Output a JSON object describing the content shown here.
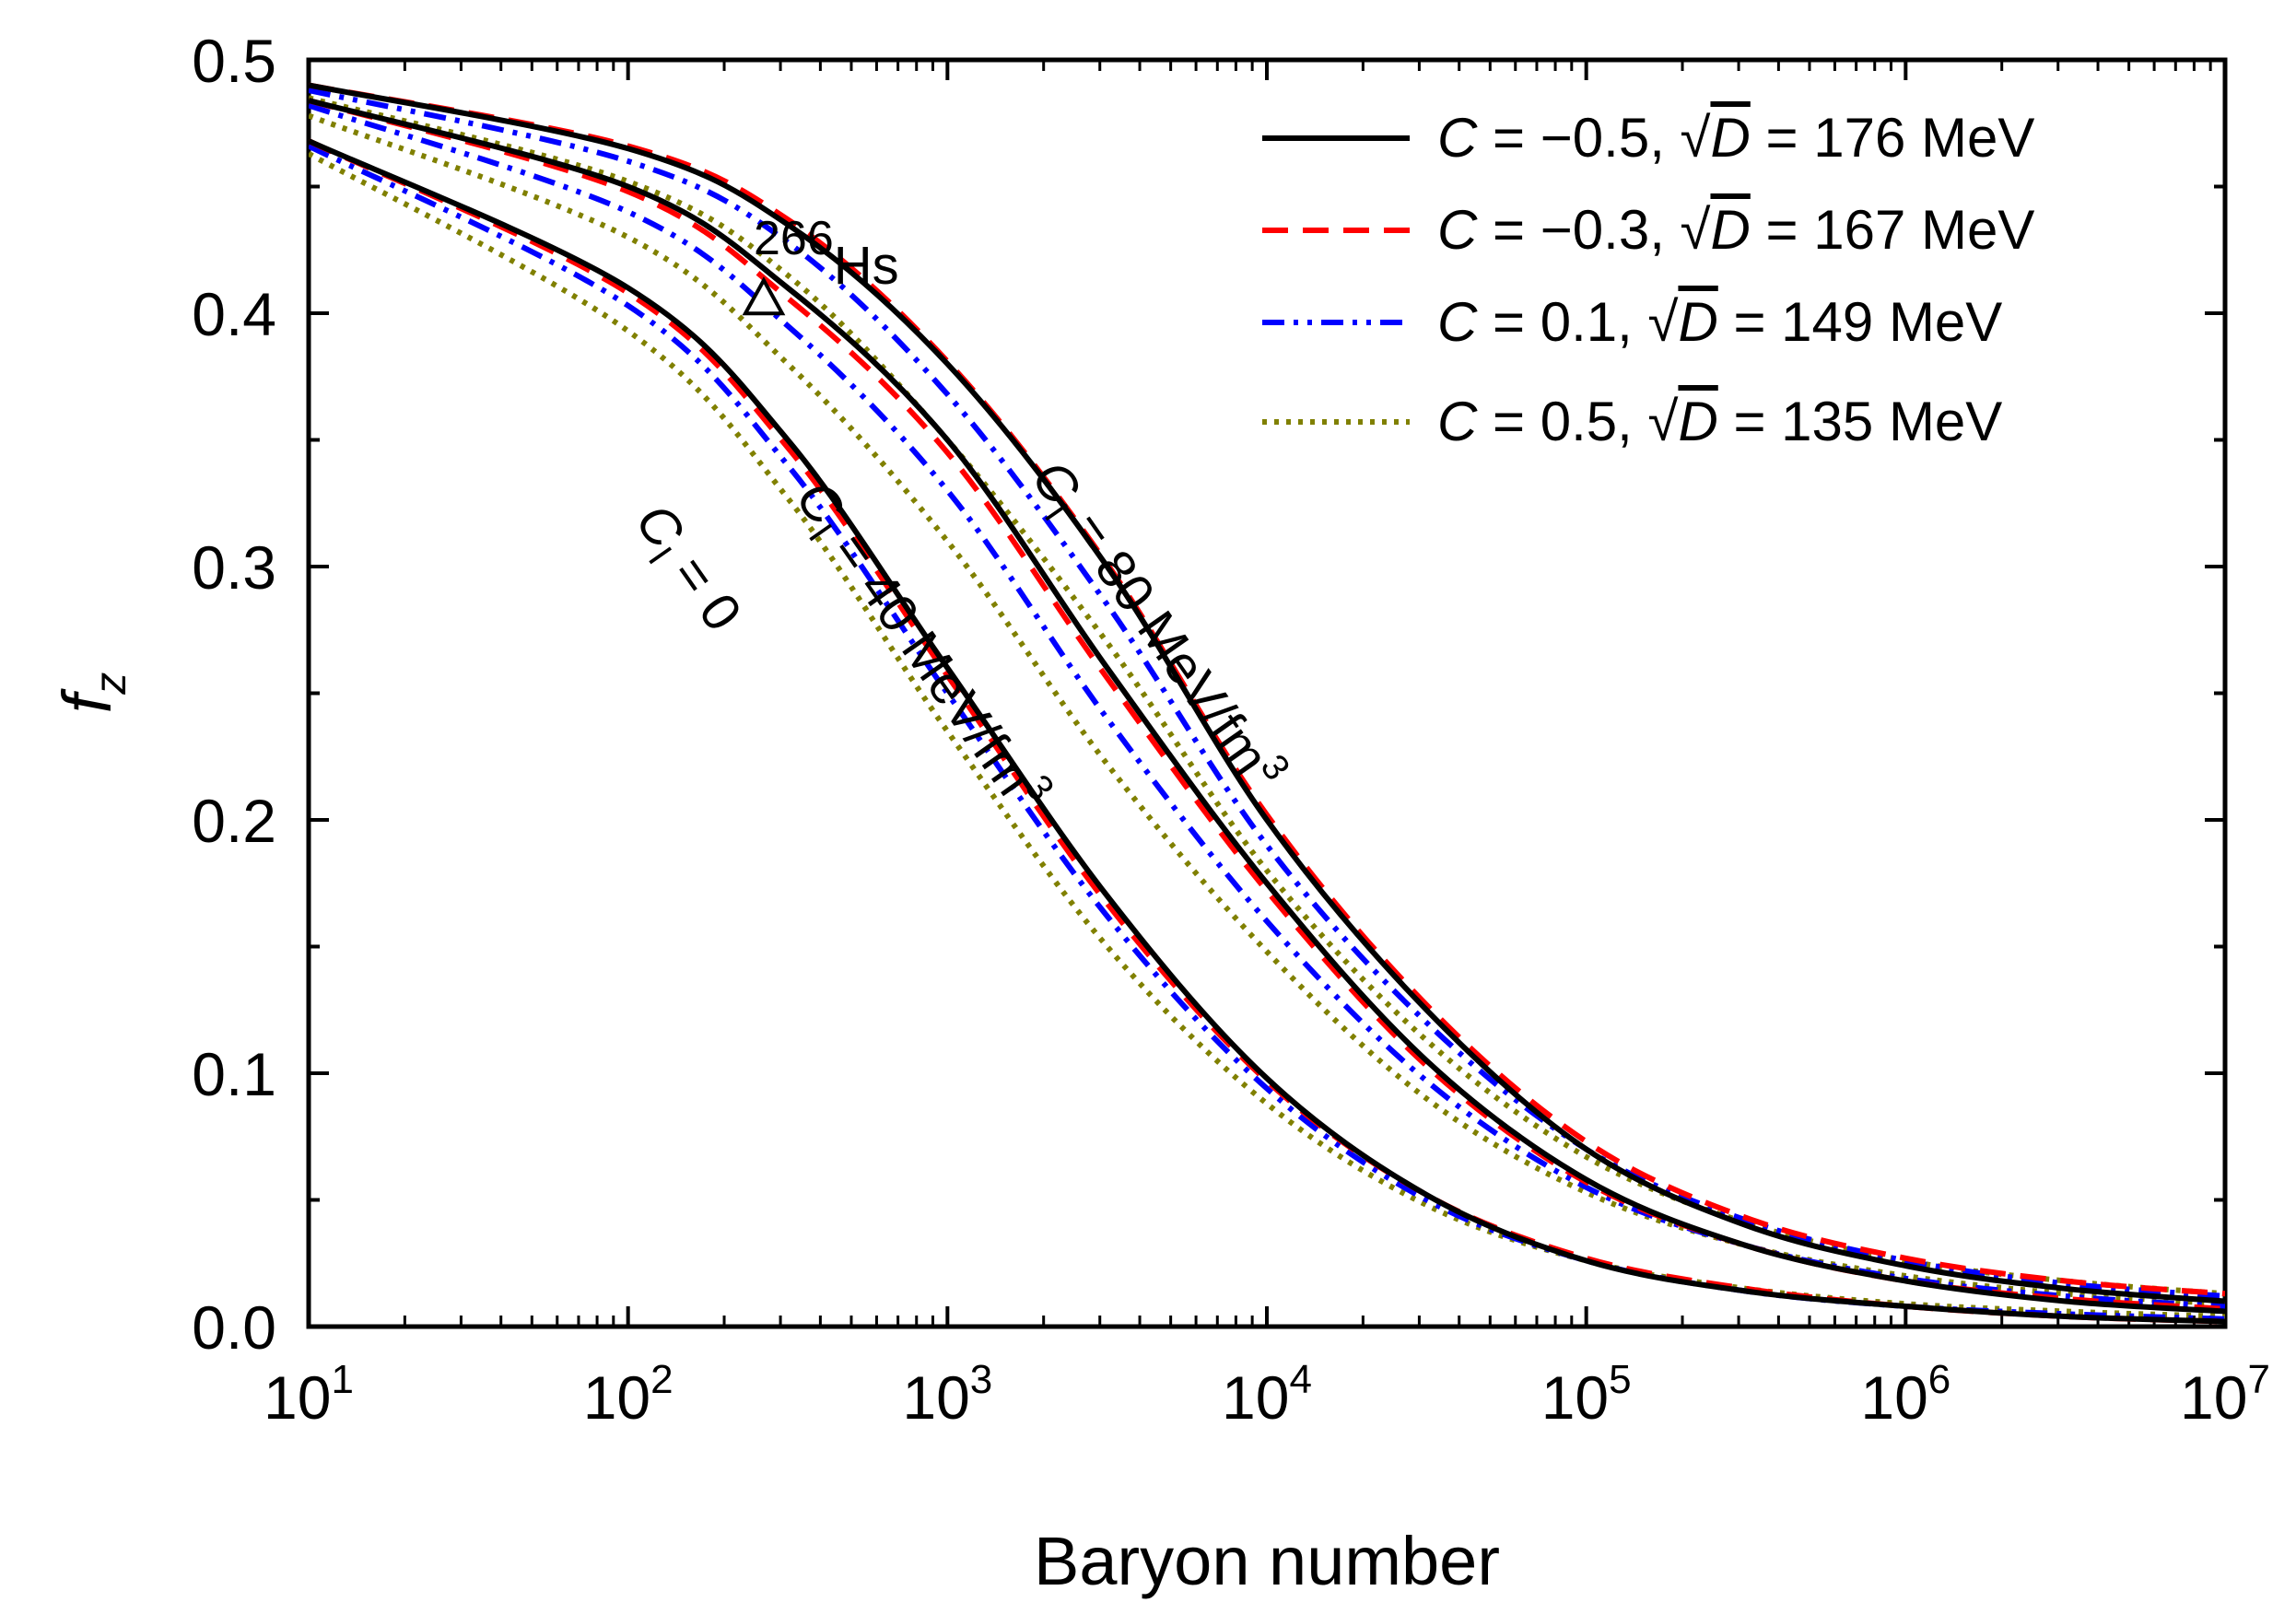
{
  "chart_data": {
    "type": "line",
    "x_scale": "log10",
    "xlabel": "Baryon number",
    "ylabel": {
      "main": "f",
      "sub": "z"
    },
    "xlim_exponents": [
      1,
      7
    ],
    "xticks": [
      {
        "base": "10",
        "exp": "1"
      },
      {
        "base": "10",
        "exp": "2"
      },
      {
        "base": "10",
        "exp": "3"
      },
      {
        "base": "10",
        "exp": "4"
      },
      {
        "base": "10",
        "exp": "5"
      },
      {
        "base": "10",
        "exp": "6"
      },
      {
        "base": "10",
        "exp": "7"
      }
    ],
    "ylim": [
      0,
      0.5
    ],
    "yticks": [
      "0.0",
      "0.1",
      "0.2",
      "0.3",
      "0.4",
      "0.5"
    ],
    "legend": {
      "placement": "top-right",
      "entries": [
        {
          "C": "−0.5",
          "D": "176 MeV"
        },
        {
          "C": "−0.3",
          "D": "167 MeV"
        },
        {
          "C": "0.1",
          "D": "149 MeV"
        },
        {
          "C": "0.5",
          "D": "135 MeV"
        }
      ]
    },
    "series": [
      {
        "name": "C = −0.5, √D = 176 MeV",
        "style": "solid",
        "color": "#000000",
        "groups": [
          {
            "Cl": "0",
            "x_exp": [
              1,
              2,
              2.5,
              3,
              3.5,
              4,
              4.5,
              5,
              5.5,
              6,
              6.5,
              7
            ],
            "y": [
              0.468,
              0.41,
              0.35,
              0.26,
              0.17,
              0.098,
              0.052,
              0.026,
              0.014,
              0.008,
              0.004,
              0.002
            ]
          },
          {
            "Cl": "40",
            "x_exp": [
              1,
              2,
              2.5,
              3,
              3.5,
              4,
              4.5,
              5,
              5.5,
              6,
              6.5,
              7
            ],
            "y": [
              0.484,
              0.45,
              0.41,
              0.35,
              0.26,
              0.175,
              0.105,
              0.058,
              0.032,
              0.018,
              0.01,
              0.006
            ]
          },
          {
            "Cl": "80",
            "x_exp": [
              1,
              2,
              2.5,
              3,
              3.5,
              4,
              4.5,
              5,
              5.5,
              6,
              6.5,
              7
            ],
            "y": [
              0.49,
              0.465,
              0.435,
              0.38,
              0.3,
              0.2,
              0.125,
              0.07,
              0.04,
              0.024,
              0.015,
              0.01
            ]
          }
        ]
      },
      {
        "name": "C = −0.3, √D = 167 MeV",
        "style": "dash",
        "color": "#ff0000",
        "groups": [
          {
            "Cl": "0",
            "x_exp": [
              1,
              2,
              2.5,
              3,
              3.5,
              4,
              4.5,
              5,
              5.5,
              6,
              6.5,
              7
            ],
            "y": [
              0.468,
              0.408,
              0.347,
              0.257,
              0.167,
              0.097,
              0.052,
              0.027,
              0.015,
              0.008,
              0.004,
              0.002
            ]
          },
          {
            "Cl": "40",
            "x_exp": [
              1,
              2,
              2.5,
              3,
              3.5,
              4,
              4.5,
              5,
              5.5,
              6,
              6.5,
              7
            ],
            "y": [
              0.484,
              0.448,
              0.406,
              0.345,
              0.256,
              0.172,
              0.103,
              0.057,
              0.032,
              0.018,
              0.011,
              0.007
            ]
          },
          {
            "Cl": "80",
            "x_exp": [
              1,
              2,
              2.5,
              3,
              3.5,
              4,
              4.5,
              5,
              5.5,
              6,
              6.5,
              7
            ],
            "y": [
              0.49,
              0.466,
              0.437,
              0.381,
              0.301,
              0.202,
              0.127,
              0.073,
              0.043,
              0.027,
              0.018,
              0.013
            ]
          }
        ]
      },
      {
        "name": "C = 0.1, √D = 149 MeV",
        "style": "dashdotdot",
        "color": "#0000ff",
        "groups": [
          {
            "Cl": "0",
            "x_exp": [
              1,
              2,
              2.5,
              3,
              3.5,
              4,
              4.5,
              5,
              5.5,
              6,
              6.5,
              7
            ],
            "y": [
              0.466,
              0.403,
              0.34,
              0.25,
              0.162,
              0.094,
              0.05,
              0.026,
              0.014,
              0.008,
              0.005,
              0.003
            ]
          },
          {
            "Cl": "40",
            "x_exp": [
              1,
              2,
              2.5,
              3,
              3.5,
              4,
              4.5,
              5,
              5.5,
              6,
              6.5,
              7
            ],
            "y": [
              0.482,
              0.44,
              0.395,
              0.33,
              0.24,
              0.16,
              0.097,
              0.055,
              0.032,
              0.019,
              0.012,
              0.008
            ]
          },
          {
            "Cl": "80",
            "x_exp": [
              1,
              2,
              2.5,
              3,
              3.5,
              4,
              4.5,
              5,
              5.5,
              6,
              6.5,
              7
            ],
            "y": [
              0.488,
              0.46,
              0.428,
              0.368,
              0.285,
              0.19,
              0.12,
              0.07,
              0.042,
              0.026,
              0.017,
              0.012
            ]
          }
        ]
      },
      {
        "name": "C = 0.5, √D = 135 MeV",
        "style": "dot",
        "color": "#808000",
        "groups": [
          {
            "Cl": "0",
            "x_exp": [
              1,
              2,
              2.5,
              3,
              3.5,
              4,
              4.5,
              5,
              5.5,
              6,
              6.5,
              7
            ],
            "y": [
              0.463,
              0.393,
              0.327,
              0.235,
              0.15,
              0.088,
              0.048,
              0.026,
              0.015,
              0.009,
              0.006,
              0.004
            ]
          },
          {
            "Cl": "40",
            "x_exp": [
              1,
              2,
              2.5,
              3,
              3.5,
              4,
              4.5,
              5,
              5.5,
              6,
              6.5,
              7
            ],
            "y": [
              0.478,
              0.43,
              0.38,
              0.31,
              0.222,
              0.148,
              0.09,
              0.053,
              0.032,
              0.02,
              0.013,
              0.009
            ]
          },
          {
            "Cl": "80",
            "x_exp": [
              1,
              2,
              2.5,
              3,
              3.5,
              4,
              4.5,
              5,
              5.5,
              6,
              6.5,
              7
            ],
            "y": [
              0.485,
              0.452,
              0.415,
              0.35,
              0.27,
              0.18,
              0.113,
              0.067,
              0.041,
              0.026,
              0.018,
              0.013
            ]
          }
        ]
      }
    ],
    "annotations": {
      "hs_marker": {
        "A": 266,
        "fz": 0.405,
        "label_base": "Hs",
        "label_sup": "266"
      },
      "cl0_label": {
        "main": "C",
        "sub": "I",
        "rest": " = 0"
      },
      "cl40_label": {
        "main": "C",
        "sub": "I",
        "rest": " = 40 MeV/fm",
        "sup": "3"
      },
      "cl80_label": {
        "main": "C",
        "sub": "I",
        "rest": " = 80 MeV/fm",
        "sup": "3"
      }
    }
  }
}
